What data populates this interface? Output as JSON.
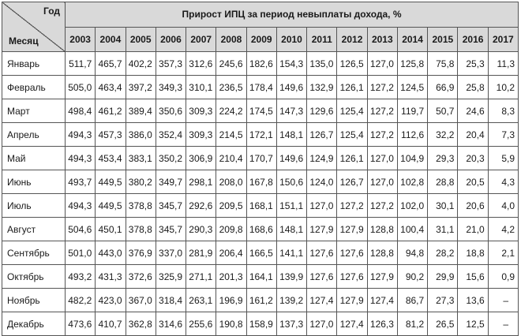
{
  "table": {
    "corner_top": "Год",
    "corner_bottom": "Месяц",
    "group_header": "Прирост ИПЦ за период невыплаты дохода, %",
    "years": [
      "2003",
      "2004",
      "2005",
      "2006",
      "2007",
      "2008",
      "2009",
      "2010",
      "2011",
      "2012",
      "2013",
      "2014",
      "2015",
      "2016",
      "2017"
    ],
    "rows": [
      {
        "month": "Январь",
        "values": [
          "511,7",
          "465,7",
          "402,2",
          "357,3",
          "312,6",
          "245,6",
          "182,6",
          "154,3",
          "135,0",
          "126,5",
          "127,0",
          "125,8",
          "75,8",
          "25,3",
          "11,3"
        ]
      },
      {
        "month": "Февраль",
        "values": [
          "505,0",
          "463,4",
          "397,2",
          "349,3",
          "310,1",
          "236,5",
          "178,4",
          "149,6",
          "132,9",
          "126,1",
          "127,2",
          "124,5",
          "66,9",
          "25,8",
          "10,2"
        ]
      },
      {
        "month": "Март",
        "values": [
          "498,4",
          "461,2",
          "389,4",
          "350,6",
          "309,3",
          "224,2",
          "174,5",
          "147,3",
          "129,6",
          "125,4",
          "127,2",
          "119,7",
          "50,7",
          "24,6",
          "8,3"
        ]
      },
      {
        "month": "Апрель",
        "values": [
          "494,3",
          "457,3",
          "386,0",
          "352,4",
          "309,3",
          "214,5",
          "172,1",
          "148,1",
          "126,7",
          "125,4",
          "127,2",
          "112,6",
          "32,2",
          "20,4",
          "7,3"
        ]
      },
      {
        "month": "Май",
        "values": [
          "494,3",
          "453,4",
          "383,1",
          "350,2",
          "306,9",
          "210,4",
          "170,7",
          "149,6",
          "124,9",
          "126,1",
          "127,0",
          "104,9",
          "29,3",
          "20,3",
          "5,9"
        ]
      },
      {
        "month": "Июнь",
        "values": [
          "493,7",
          "449,5",
          "380,2",
          "349,7",
          "298,1",
          "208,0",
          "167,8",
          "150,6",
          "124,0",
          "126,7",
          "127,0",
          "102,8",
          "28,8",
          "20,5",
          "4,3"
        ]
      },
      {
        "month": "Июль",
        "values": [
          "494,3",
          "449,5",
          "378,8",
          "345,7",
          "292,6",
          "209,5",
          "168,1",
          "151,1",
          "127,0",
          "127,2",
          "127,2",
          "102,0",
          "30,1",
          "20,6",
          "4,0"
        ]
      },
      {
        "month": "Август",
        "values": [
          "504,6",
          "450,1",
          "378,8",
          "345,7",
          "290,3",
          "209,8",
          "168,6",
          "148,1",
          "127,9",
          "127,9",
          "128,8",
          "100,4",
          "31,1",
          "21,0",
          "4,2"
        ]
      },
      {
        "month": "Сентябрь",
        "values": [
          "501,0",
          "443,0",
          "376,9",
          "337,0",
          "281,9",
          "206,4",
          "166,5",
          "141,1",
          "127,6",
          "127,6",
          "128,8",
          "94,8",
          "28,2",
          "18,8",
          "2,1"
        ]
      },
      {
        "month": "Октябрь",
        "values": [
          "493,2",
          "431,3",
          "372,6",
          "325,9",
          "271,1",
          "201,3",
          "164,1",
          "139,9",
          "127,6",
          "127,6",
          "127,9",
          "90,2",
          "29,9",
          "15,6",
          "0,9"
        ]
      },
      {
        "month": "Ноябрь",
        "values": [
          "482,2",
          "423,0",
          "367,0",
          "318,4",
          "263,1",
          "196,9",
          "161,2",
          "139,2",
          "127,4",
          "127,9",
          "127,4",
          "86,7",
          "27,3",
          "13,6",
          "–"
        ]
      },
      {
        "month": "Декабрь",
        "values": [
          "473,6",
          "410,7",
          "362,8",
          "314,6",
          "255,6",
          "190,8",
          "158,9",
          "137,3",
          "127,0",
          "127,4",
          "126,3",
          "81,2",
          "26,5",
          "12,5",
          "–"
        ]
      }
    ]
  }
}
